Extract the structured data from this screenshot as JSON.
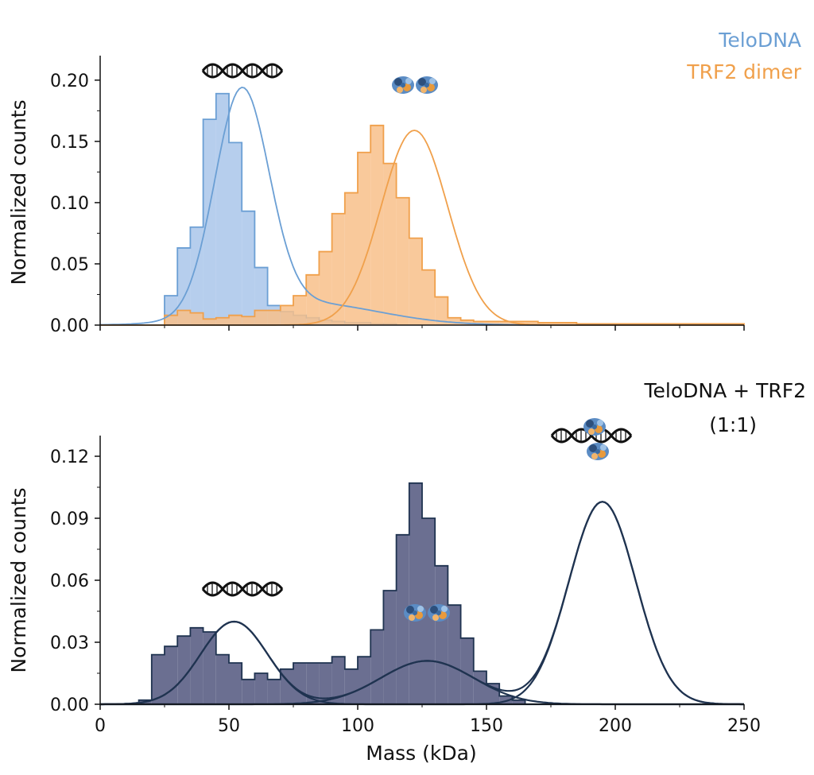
{
  "chart_data": [
    {
      "type": "histogram",
      "xlim": [
        0,
        250
      ],
      "ylim": [
        0,
        0.22
      ],
      "ylabel": "Normalized counts",
      "x_ticks": [
        "0",
        "50",
        "100",
        "150",
        "200",
        "250"
      ],
      "y_ticks": [
        "0.00",
        "0.05",
        "0.10",
        "0.15",
        "0.20"
      ],
      "y_tick_values": [
        0,
        0.05,
        0.1,
        0.15,
        0.2
      ],
      "legend_position": "top-right",
      "legend": [
        {
          "name": "TeloDNA",
          "color": "#6b9fd4"
        },
        {
          "name": "TRF2 dimer",
          "color": "#f0a04b"
        }
      ],
      "bin_width": 5,
      "series": [
        {
          "name": "TeloDNA",
          "fill": "#a9c6ea",
          "line": "#6b9fd4",
          "bins_start": 25,
          "values": [
            0.024,
            0.063,
            0.08,
            0.168,
            0.189,
            0.149,
            0.093,
            0.047,
            0.016,
            0.011,
            0.008,
            0.006,
            0.004,
            0.003,
            0.002,
            0.002,
            0.001,
            0.001
          ],
          "fit": [
            {
              "amp": 0.182,
              "mu": 55,
              "sigma": 10.5
            },
            {
              "amp": 0.018,
              "mu": 80,
              "sigma": 28
            }
          ]
        },
        {
          "name": "TRF2 dimer",
          "fill": "#f8c08a",
          "line": "#f0a04b",
          "bins_start": 25,
          "values": [
            0.008,
            0.012,
            0.01,
            0.005,
            0.006,
            0.008,
            0.007,
            0.012,
            0.012,
            0.016,
            0.024,
            0.041,
            0.06,
            0.091,
            0.108,
            0.141,
            0.163,
            0.132,
            0.104,
            0.071,
            0.045,
            0.023,
            0.006,
            0.004,
            0.003,
            0.003,
            0.003,
            0.003,
            0.003,
            0.002,
            0.002,
            0.002,
            0.001,
            0.001,
            0.001,
            0.001,
            0.001,
            0.001,
            0.001,
            0.001,
            0.001,
            0.001,
            0.001,
            0.001,
            0.001
          ],
          "fit": [
            {
              "amp": 0.159,
              "mu": 122,
              "sigma": 13
            }
          ]
        }
      ]
    },
    {
      "type": "histogram",
      "xlim": [
        0,
        250
      ],
      "ylim": [
        0,
        0.13
      ],
      "xlabel": "Mass (kDa)",
      "ylabel": "Normalized counts",
      "x_ticks": [
        "0",
        "50",
        "100",
        "150",
        "200",
        "250"
      ],
      "y_ticks": [
        "0.00",
        "0.03",
        "0.06",
        "0.09",
        "0.12"
      ],
      "y_tick_values": [
        0,
        0.03,
        0.06,
        0.09,
        0.12
      ],
      "annotation": [
        "TeloDNA + TRF2",
        "(1:1)"
      ],
      "bin_width": 5,
      "series": [
        {
          "name": "TeloDNA + TRF2 (1:1)",
          "fill": "#6b6f91",
          "line": "#1f3350",
          "bins_start": 15,
          "values": [
            0.002,
            0.024,
            0.028,
            0.033,
            0.037,
            0.035,
            0.024,
            0.02,
            0.012,
            0.015,
            0.012,
            0.017,
            0.02,
            0.02,
            0.02,
            0.023,
            0.017,
            0.023,
            0.036,
            0.055,
            0.082,
            0.107,
            0.09,
            0.067,
            0.048,
            0.032,
            0.016,
            0.01,
            0.004,
            0.002
          ],
          "fit_components": [
            {
              "amp": 0.04,
              "mu": 52,
              "sigma": 13
            },
            {
              "amp": 0.021,
              "mu": 127,
              "sigma": 18
            },
            {
              "amp": 0.098,
              "mu": 195,
              "sigma": 13
            }
          ]
        }
      ]
    }
  ]
}
